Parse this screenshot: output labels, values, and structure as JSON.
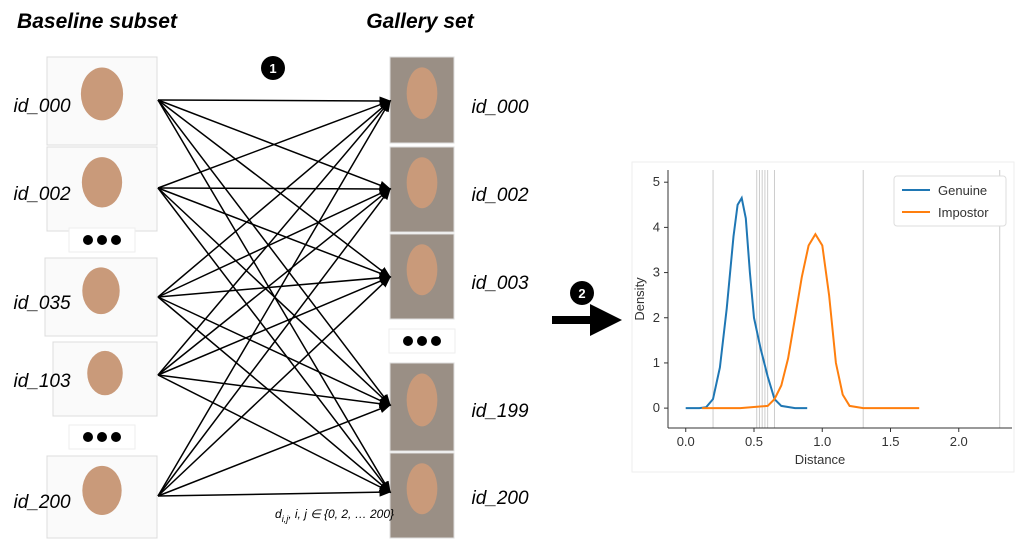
{
  "left_title": "Baseline subset",
  "right_title": "Gallery set",
  "baseline_ids": [
    "id_000",
    "id_002",
    "id_035",
    "id_103",
    "id_200"
  ],
  "gallery_ids": [
    "id_000",
    "id_002",
    "id_003",
    "id_199",
    "id_200"
  ],
  "steps": [
    "1",
    "2"
  ],
  "formula": {
    "symbol": "d",
    "subscript": "i,j",
    "text": ",  i, j ∈ {0, 2, … 200}"
  },
  "chart_data": {
    "type": "line",
    "xlabel": "Distance",
    "ylabel": "Density",
    "xlim": [
      -0.13,
      2.39
    ],
    "ylim": [
      -0.44,
      5.27
    ],
    "xticks": [
      {
        "value": 0,
        "label": "0.0"
      },
      0.5,
      {
        "value": 1,
        "label": "1.0"
      },
      1.5,
      {
        "value": 2,
        "label": "2.0"
      }
    ],
    "yticks": [
      0,
      1,
      2,
      3,
      4,
      5
    ],
    "legend": "upper right",
    "vlines": [
      0.2,
      0.52,
      0.54,
      0.56,
      0.58,
      0.6,
      0.65,
      1.3,
      2.3
    ],
    "vline_color": "#cccccc",
    "series": [
      {
        "name": "Genuine",
        "color": "#1f77b4",
        "x": [
          0,
          0.1,
          0.15,
          0.2,
          0.25,
          0.3,
          0.35,
          0.38,
          0.41,
          0.44,
          0.47,
          0.5,
          0.55,
          0.6,
          0.65,
          0.7,
          0.8,
          0.89
        ],
        "y": [
          0,
          0,
          0.02,
          0.2,
          0.9,
          2.2,
          3.8,
          4.5,
          4.65,
          4.2,
          3.0,
          2.0,
          1.3,
          0.7,
          0.2,
          0.05,
          0,
          0
        ]
      },
      {
        "name": "Impostor",
        "color": "#ff7f0e",
        "x": [
          0.12,
          0.4,
          0.6,
          0.65,
          0.7,
          0.75,
          0.8,
          0.85,
          0.9,
          0.95,
          1.0,
          1.05,
          1.1,
          1.15,
          1.2,
          1.3,
          1.5,
          1.71
        ],
        "y": [
          0,
          0,
          0.05,
          0.2,
          0.5,
          1.1,
          2.0,
          2.9,
          3.6,
          3.85,
          3.6,
          2.5,
          1.0,
          0.3,
          0.05,
          0,
          0,
          0
        ]
      }
    ]
  }
}
